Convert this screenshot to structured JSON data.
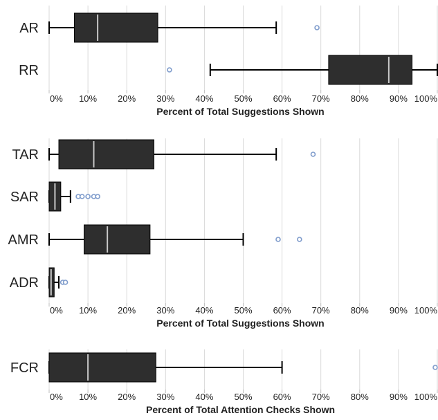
{
  "chart_data": [
    {
      "type": "box",
      "xlabel": "Percent of Total Suggestions Shown",
      "xlim": [
        0,
        100
      ],
      "xticks": [
        "0%",
        "10%",
        "20%",
        "30%",
        "40%",
        "50%",
        "60%",
        "70%",
        "80%",
        "90%",
        "100%"
      ],
      "grid": true,
      "categories": [
        "AR",
        "RR"
      ],
      "boxes": [
        {
          "category": "AR",
          "whisker_low": 0,
          "q1": 6.5,
          "median": 12.5,
          "q3": 28,
          "whisker_high": 58.5,
          "outliers": [
            69
          ]
        },
        {
          "category": "RR",
          "whisker_low": 41.5,
          "q1": 72,
          "median": 87.5,
          "q3": 93.5,
          "whisker_high": 100,
          "outliers": [
            31
          ]
        }
      ]
    },
    {
      "type": "box",
      "xlabel": "Percent of Total Suggestions Shown",
      "xlim": [
        0,
        100
      ],
      "xticks": [
        "0%",
        "10%",
        "20%",
        "30%",
        "40%",
        "50%",
        "60%",
        "70%",
        "80%",
        "90%",
        "100%"
      ],
      "grid": true,
      "categories": [
        "TAR",
        "SAR",
        "AMR",
        "ADR"
      ],
      "boxes": [
        {
          "category": "TAR",
          "whisker_low": 0,
          "q1": 2.5,
          "median": 11.5,
          "q3": 27,
          "whisker_high": 58.5,
          "outliers": [
            68
          ]
        },
        {
          "category": "SAR",
          "whisker_low": 0,
          "q1": 0,
          "median": 1.5,
          "q3": 3,
          "whisker_high": 5.5,
          "outliers": [
            7.5,
            8.5,
            10,
            11.5,
            12.5
          ]
        },
        {
          "category": "AMR",
          "whisker_low": 0,
          "q1": 9,
          "median": 15,
          "q3": 26,
          "whisker_high": 50,
          "outliers": [
            59,
            64.5
          ]
        },
        {
          "category": "ADR",
          "whisker_low": 0,
          "q1": 0,
          "median": 0.5,
          "q3": 1.3,
          "whisker_high": 2.5,
          "outliers": [
            3.5,
            4.2
          ]
        }
      ]
    },
    {
      "type": "box",
      "xlabel": "Percent of Total Attention Checks Shown",
      "xlim": [
        0,
        100
      ],
      "xticks": [
        "0%",
        "10%",
        "20%",
        "30%",
        "40%",
        "50%",
        "60%",
        "70%",
        "80%",
        "90%",
        "100%"
      ],
      "grid": true,
      "categories": [
        "FCR"
      ],
      "boxes": [
        {
          "category": "FCR",
          "whisker_low": 0,
          "q1": 0,
          "median": 10,
          "q3": 27.5,
          "whisker_high": 60,
          "outliers": [
            100
          ]
        }
      ]
    }
  ],
  "colors": {
    "box_fill": "#2e2e2e",
    "median_line": "#c8c8c8",
    "whisker": "#000000",
    "outlier": "#7f9ccc",
    "grid": "#d9d9d9"
  }
}
